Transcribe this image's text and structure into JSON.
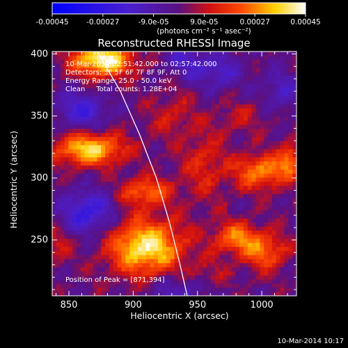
{
  "chart_data": {
    "type": "heatmap",
    "title": "Reconstructed RHESSI Image",
    "xlabel": "Heliocentric X (arcsec)",
    "ylabel": "Heliocentric Y (arcsec)",
    "xlim": [
      837,
      1027
    ],
    "ylim": [
      205,
      402
    ],
    "x_ticks": [
      "850",
      "900",
      "950",
      "1000"
    ],
    "x_tick_values": [
      850,
      900,
      950,
      1000
    ],
    "y_ticks": [
      "400",
      "350",
      "300",
      "250"
    ],
    "y_tick_values": [
      400,
      350,
      300,
      250
    ],
    "colorbar": {
      "ticks": [
        "-0.00045",
        "-0.00027",
        "-9.0e-05",
        "9.0e-05",
        "0.00027",
        "0.00045"
      ],
      "tick_values": [
        -0.00045,
        -0.00027,
        -9e-05,
        9e-05,
        0.00027,
        0.00045
      ],
      "range": [
        -0.00045,
        0.00045
      ],
      "unit_label": "(photons cm⁻² s⁻¹ asec⁻²)",
      "colormap": "blue-purple-red-yellow-white"
    },
    "annotations": {
      "time_range": "10-Mar-2014 02:51:42.000 to 02:57:42.000",
      "detectors": "Detectors: 3F 5F 6F 7F 8F 9F, Att 0",
      "energy_range": "Energy Range: 25.0 - 50.0 keV",
      "method_counts": "Clean     Total counts: 1.28E+04",
      "peak_position": "Position of Peak = [871,394]"
    },
    "peak": [
      871,
      394
    ],
    "limb_curve": {
      "x": [
        872,
        890,
        905,
        918,
        928,
        936,
        942
      ],
      "y": [
        402,
        370,
        335,
        300,
        265,
        232,
        205
      ]
    },
    "hotspots": [
      {
        "x": 876,
        "y": 395,
        "amp": 1.0,
        "sx": 16,
        "sy": 9
      },
      {
        "x": 866,
        "y": 323,
        "amp": 0.82,
        "sx": 19,
        "sy": 9
      },
      {
        "x": 910,
        "y": 244,
        "amp": 0.9,
        "sx": 20,
        "sy": 16
      },
      {
        "x": 910,
        "y": 289,
        "amp": 0.55,
        "sx": 14,
        "sy": 8
      },
      {
        "x": 1000,
        "y": 305,
        "amp": 0.62,
        "sx": 15,
        "sy": 10
      },
      {
        "x": 1022,
        "y": 315,
        "amp": 0.5,
        "sx": 6,
        "sy": 9
      },
      {
        "x": 980,
        "y": 252,
        "amp": 0.58,
        "sx": 13,
        "sy": 9
      },
      {
        "x": 1003,
        "y": 240,
        "amp": 0.52,
        "sx": 12,
        "sy": 10
      },
      {
        "x": 955,
        "y": 310,
        "amp": 0.3,
        "sx": 12,
        "sy": 20
      },
      {
        "x": 930,
        "y": 350,
        "amp": 0.22,
        "sx": 14,
        "sy": 14
      },
      {
        "x": 985,
        "y": 350,
        "amp": 0.18,
        "sx": 14,
        "sy": 10
      },
      {
        "x": 840,
        "y": 245,
        "amp": 0.28,
        "sx": 8,
        "sy": 10
      },
      {
        "x": 957,
        "y": 222,
        "amp": 0.2,
        "sx": 12,
        "sy": 8
      },
      {
        "x": 860,
        "y": 355,
        "amp": -0.45,
        "sx": 14,
        "sy": 10
      },
      {
        "x": 865,
        "y": 272,
        "amp": -0.55,
        "sx": 14,
        "sy": 12
      },
      {
        "x": 965,
        "y": 385,
        "amp": -0.35,
        "sx": 14,
        "sy": 10
      },
      {
        "x": 940,
        "y": 395,
        "amp": -0.3,
        "sx": 12,
        "sy": 8
      },
      {
        "x": 935,
        "y": 210,
        "amp": -0.3,
        "sx": 16,
        "sy": 10
      },
      {
        "x": 1015,
        "y": 370,
        "amp": -0.3,
        "sx": 10,
        "sy": 12
      }
    ]
  },
  "timestamp": "10-Mar-2014 10:17"
}
